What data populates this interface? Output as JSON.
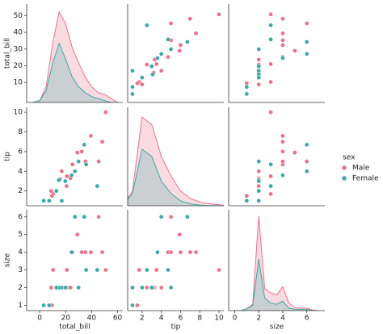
{
  "legend": {
    "title": "sex"
  },
  "chart_data": [
    {
      "type": "kde",
      "ylabel": "total_bill",
      "xlim": [
        -10,
        64
      ],
      "ylim": [
        -2,
        57
      ],
      "yticks": [
        10,
        20,
        30,
        40,
        50
      ],
      "y2lim": [
        0,
        0.05
      ],
      "x": [
        -5,
        0,
        5,
        10,
        15,
        20,
        25,
        30,
        35,
        40,
        45,
        50,
        55,
        60
      ],
      "series": [
        {
          "name": "Male",
          "color": "#f0708a",
          "axis": "y2",
          "values": [
            0,
            0.001,
            0.008,
            0.03,
            0.046,
            0.04,
            0.028,
            0.02,
            0.013,
            0.008,
            0.005,
            0.004,
            0.002,
            0
          ]
        },
        {
          "name": "Female",
          "color": "#36ada4",
          "axis": "y2",
          "values": [
            0,
            0.001,
            0.006,
            0.02,
            0.03,
            0.022,
            0.013,
            0.008,
            0.005,
            0.003,
            0.002,
            0.001,
            0,
            0
          ]
        }
      ]
    },
    {
      "type": "scatter",
      "xlim": [
        0.5,
        10.5
      ],
      "ylim": [
        -2,
        57
      ],
      "series": [
        {
          "name": "Male",
          "color": "#f0708a",
          "x": [
            1.7,
            3.5,
            3.3,
            4.7,
            2.0,
            3.2,
            5.0,
            2.5,
            7.6,
            6.0,
            10.0,
            7.0,
            5.0,
            5.9,
            1.5,
            4.0
          ],
          "values": [
            10.3,
            21.0,
            23.7,
            25.3,
            8.8,
            15.8,
            35.3,
            20.7,
            39.4,
            32.4,
            50.8,
            48.2,
            45.4,
            29.0,
            9.5,
            17.0
          ]
        },
        {
          "name": "Female",
          "color": "#36ada4",
          "x": [
            1.0,
            3.6,
            3.1,
            4.7,
            3.0,
            5.0,
            2.5,
            6.7,
            4.0,
            1.0,
            1.0,
            2.0
          ],
          "values": [
            17.0,
            24.6,
            14.8,
            35.8,
            19.7,
            29.9,
            44.3,
            34.3,
            27.1,
            3.1,
            7.3,
            12.9
          ]
        }
      ]
    },
    {
      "type": "scatter",
      "xlim": [
        -0.5,
        7.5
      ],
      "ylim": [
        -2,
        57
      ],
      "series": [
        {
          "name": "Male",
          "color": "#f0708a",
          "x": [
            3,
            3,
            2,
            4,
            2,
            2,
            4,
            2,
            4,
            4,
            3,
            4,
            6,
            5,
            1,
            2
          ],
          "values": [
            10.3,
            21.0,
            23.7,
            25.3,
            8.8,
            15.8,
            35.3,
            20.7,
            39.4,
            32.4,
            50.8,
            48.2,
            45.4,
            29.0,
            9.5,
            17.0
          ]
        },
        {
          "name": "Female",
          "color": "#36ada4",
          "x": [
            2,
            4,
            2,
            3,
            2,
            2,
            3,
            6,
            6,
            1,
            1,
            2
          ],
          "values": [
            17.0,
            24.6,
            14.8,
            35.8,
            19.7,
            29.9,
            44.3,
            34.3,
            27.1,
            3.1,
            7.3,
            12.9
          ]
        }
      ]
    },
    {
      "type": "scatter",
      "ylabel": "tip",
      "xlim": [
        -10,
        64
      ],
      "ylim": [
        0.5,
        10.5
      ],
      "yticks": [
        2,
        4,
        6,
        8,
        10
      ],
      "series": [
        {
          "name": "Male",
          "color": "#f0708a",
          "x": [
            10.3,
            21.0,
            23.7,
            25.3,
            8.8,
            15.8,
            35.3,
            20.7,
            39.4,
            32.4,
            50.8,
            48.2,
            45.4,
            29.0,
            9.5,
            17.0
          ],
          "values": [
            1.7,
            3.5,
            3.3,
            4.7,
            2.0,
            3.2,
            5.0,
            2.5,
            7.6,
            6.0,
            10.0,
            7.0,
            5.0,
            5.9,
            1.5,
            4.0
          ]
        },
        {
          "name": "Female",
          "color": "#36ada4",
          "x": [
            17.0,
            24.6,
            14.8,
            35.8,
            19.7,
            29.9,
            44.3,
            34.3,
            27.1,
            3.1,
            7.3,
            12.9
          ],
          "values": [
            1.0,
            3.6,
            3.1,
            4.7,
            3.0,
            5.0,
            2.5,
            6.7,
            4.0,
            1.0,
            1.0,
            2.0
          ]
        }
      ]
    },
    {
      "type": "kde",
      "xlim": [
        0.5,
        10.5
      ],
      "ylim": [
        0.5,
        10.5
      ],
      "y2lim": [
        0,
        0.4
      ],
      "x": [
        0,
        1,
        2,
        3,
        4,
        5,
        6,
        7,
        8,
        9,
        10,
        11
      ],
      "series": [
        {
          "name": "Male",
          "color": "#f0708a",
          "axis": "y2",
          "values": [
            0,
            0.06,
            0.36,
            0.33,
            0.2,
            0.12,
            0.06,
            0.03,
            0.015,
            0.008,
            0.004,
            0
          ]
        },
        {
          "name": "Female",
          "color": "#36ada4",
          "axis": "y2",
          "values": [
            0,
            0.05,
            0.23,
            0.2,
            0.1,
            0.05,
            0.02,
            0.008,
            0.003,
            0.001,
            0,
            0
          ]
        }
      ]
    },
    {
      "type": "scatter",
      "xlim": [
        -0.5,
        7.5
      ],
      "ylim": [
        0.5,
        10.5
      ],
      "series": [
        {
          "name": "Male",
          "color": "#f0708a",
          "x": [
            3,
            3,
            2,
            4,
            2,
            2,
            4,
            2,
            4,
            4,
            3,
            4,
            6,
            5,
            1,
            2
          ],
          "values": [
            1.7,
            3.5,
            3.3,
            4.7,
            2.0,
            3.2,
            5.0,
            2.5,
            7.6,
            6.0,
            10.0,
            7.0,
            5.0,
            5.9,
            1.5,
            4.0
          ]
        },
        {
          "name": "Female",
          "color": "#36ada4",
          "x": [
            2,
            4,
            2,
            3,
            2,
            2,
            3,
            6,
            6,
            1,
            1,
            2
          ],
          "values": [
            1.0,
            3.6,
            3.1,
            4.7,
            3.0,
            5.0,
            2.5,
            6.7,
            4.0,
            1.0,
            1.0,
            2.0
          ]
        }
      ]
    },
    {
      "type": "scatter",
      "xlabel": "total_bill",
      "ylabel": "size",
      "xlim": [
        -10,
        64
      ],
      "ylim": [
        0.7,
        6.4
      ],
      "xticks": [
        0,
        20,
        40,
        60
      ],
      "yticks": [
        1,
        2,
        3,
        4,
        5,
        6
      ],
      "series": [
        {
          "name": "Male",
          "color": "#f0708a",
          "x": [
            10.3,
            21.0,
            23.7,
            25.3,
            8.8,
            15.8,
            35.3,
            20.7,
            39.4,
            32.4,
            50.8,
            48.2,
            45.4,
            29.0,
            9.5,
            17.0
          ],
          "values": [
            3,
            3,
            2,
            4,
            2,
            2,
            4,
            2,
            4,
            4,
            3,
            4,
            6,
            5,
            1,
            2
          ]
        },
        {
          "name": "Female",
          "color": "#36ada4",
          "x": [
            17.0,
            24.6,
            14.8,
            35.8,
            19.7,
            29.9,
            44.3,
            34.3,
            27.1,
            3.1,
            7.3,
            12.9
          ],
          "values": [
            2,
            4,
            2,
            3,
            2,
            2,
            3,
            6,
            6,
            1,
            1,
            2
          ]
        }
      ]
    },
    {
      "type": "scatter",
      "xlabel": "tip",
      "xlim": [
        0.5,
        10.5
      ],
      "ylim": [
        0.7,
        6.4
      ],
      "xticks": [
        2,
        4,
        6,
        8,
        10
      ],
      "series": [
        {
          "name": "Male",
          "color": "#f0708a",
          "x": [
            1.7,
            3.5,
            3.3,
            4.7,
            2.0,
            3.2,
            5.0,
            2.5,
            7.6,
            6.0,
            10.0,
            7.0,
            5.0,
            5.9,
            1.5,
            4.0
          ],
          "values": [
            3,
            3,
            2,
            4,
            2,
            2,
            4,
            2,
            4,
            4,
            3,
            4,
            6,
            5,
            1,
            2
          ]
        },
        {
          "name": "Female",
          "color": "#36ada4",
          "x": [
            1.0,
            3.6,
            3.1,
            4.7,
            3.0,
            5.0,
            2.5,
            6.7,
            4.0,
            1.0,
            1.0,
            2.0
          ],
          "values": [
            2,
            4,
            2,
            3,
            2,
            2,
            3,
            6,
            6,
            1,
            1,
            2
          ]
        }
      ]
    },
    {
      "type": "kde",
      "xlabel": "size",
      "xlim": [
        -0.5,
        7.5
      ],
      "ylim": [
        0.7,
        6.4
      ],
      "xticks": [
        0,
        2,
        4,
        6
      ],
      "y2lim": [
        0,
        1.6
      ],
      "x": [
        0,
        0.5,
        1,
        1.5,
        2,
        2.5,
        3,
        3.5,
        4,
        4.5,
        5,
        5.5,
        6,
        6.5,
        7
      ],
      "series": [
        {
          "name": "Male",
          "color": "#f0708a",
          "axis": "y2",
          "values": [
            0,
            0,
            0.03,
            0.1,
            1.5,
            0.35,
            0.28,
            0.25,
            0.38,
            0.12,
            0.05,
            0.04,
            0.04,
            0.01,
            0
          ]
        },
        {
          "name": "Female",
          "color": "#36ada4",
          "axis": "y2",
          "values": [
            0,
            0,
            0.03,
            0.08,
            0.82,
            0.2,
            0.12,
            0.1,
            0.15,
            0.04,
            0.02,
            0.02,
            0.02,
            0,
            0
          ]
        }
      ]
    }
  ]
}
